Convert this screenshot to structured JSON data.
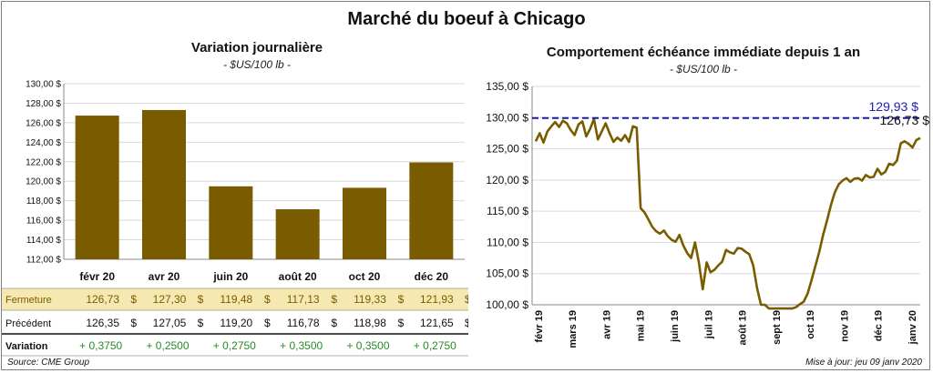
{
  "title": "Marché du boeuf à Chicago",
  "left_panel": {
    "title": "Variation  journalière",
    "unit": "- $US/100 lb -",
    "rows": {
      "fermeture_label": "Fermeture",
      "precedent_label": "Précédent",
      "variation_label": "Variation",
      "fermeture": [
        "126,73",
        "127,30",
        "119,48",
        "117,13",
        "119,33",
        "121,93"
      ],
      "precedent": [
        "126,35",
        "127,05",
        "119,20",
        "116,78",
        "118,98",
        "121,65"
      ],
      "variation": [
        "+ 0,3750",
        "+ 0,2500",
        "+ 0,2750",
        "+ 0,3500",
        "+ 0,3500",
        "+ 0,2750"
      ],
      "currency": "$"
    }
  },
  "right_panel": {
    "title": "Comportement  échéance immédiate depuis 1 an",
    "unit": "- $US/100 lb -",
    "ref_label": "129,93 $",
    "last_label": "126,73 $"
  },
  "footer": {
    "source": "Source: CME Group",
    "update": "Mise à jour: jeu 09 janv 2020"
  },
  "colors": {
    "bar": "#7a5c00",
    "line": "#7a5c00",
    "ref_line": "#1c1ca8",
    "ref_label": "#2020b0",
    "fermeture_bg": "#f6e8b1",
    "variation_text": "#2a8a2a",
    "grid": "#d9d9d9"
  },
  "chart_data": [
    {
      "type": "bar",
      "categories": [
        "févr 20",
        "avr 20",
        "juin 20",
        "août 20",
        "oct 20",
        "déc 20"
      ],
      "values": [
        126.73,
        127.3,
        119.48,
        117.13,
        119.33,
        121.93
      ],
      "ylim": [
        112,
        130
      ],
      "yticks": [
        "112,00 $",
        "114,00 $",
        "116,00 $",
        "118,00 $",
        "120,00 $",
        "122,00 $",
        "124,00 $",
        "126,00 $",
        "128,00 $",
        "130,00 $"
      ],
      "ytick_values": [
        112,
        114,
        116,
        118,
        120,
        122,
        124,
        126,
        128,
        130
      ],
      "grid": true
    },
    {
      "type": "line",
      "ylim": [
        100,
        135
      ],
      "yticks": [
        "100,00 $",
        "105,00 $",
        "110,00 $",
        "115,00 $",
        "120,00 $",
        "125,00 $",
        "130,00 $",
        "135,00 $"
      ],
      "ytick_values": [
        100,
        105,
        110,
        115,
        120,
        125,
        130,
        135
      ],
      "xticks": [
        "févr 19",
        "mars 19",
        "avr 19",
        "mai 19",
        "juin 19",
        "juil 19",
        "août 19",
        "sept 19",
        "oct 19",
        "nov 19",
        "déc 19",
        "janv 20"
      ],
      "reference_value": 129.93,
      "last_value": 126.73,
      "grid": true,
      "values": [
        126.2,
        127.5,
        126.0,
        127.8,
        128.6,
        129.3,
        128.5,
        129.5,
        129.1,
        128.0,
        127.2,
        128.9,
        129.4,
        127.0,
        128.2,
        129.8,
        126.5,
        127.8,
        129.1,
        127.5,
        126.1,
        126.8,
        126.3,
        127.2,
        126.1,
        128.6,
        128.4,
        115.5,
        114.8,
        113.7,
        112.5,
        111.8,
        111.4,
        111.9,
        111.0,
        110.4,
        110.1,
        111.2,
        109.5,
        108.3,
        107.5,
        110.0,
        106.8,
        102.5,
        106.8,
        105.2,
        105.6,
        106.3,
        106.9,
        108.8,
        108.4,
        108.2,
        109.1,
        109.0,
        108.5,
        108.1,
        106.3,
        102.6,
        100.0,
        100.0,
        98.5,
        97.8,
        99.0,
        98.3,
        99.3,
        97.9,
        98.5,
        99.6,
        100.1,
        100.5,
        101.8,
        103.9,
        106.2,
        108.5,
        111.2,
        113.5,
        116.0,
        118.0,
        119.3,
        119.9,
        120.3,
        119.7,
        120.2,
        120.3,
        119.9,
        120.8,
        120.4,
        120.5,
        121.8,
        120.9,
        121.3,
        122.6,
        122.4,
        123.1,
        125.9,
        126.2,
        125.8,
        125.2,
        126.4,
        126.73
      ]
    }
  ]
}
